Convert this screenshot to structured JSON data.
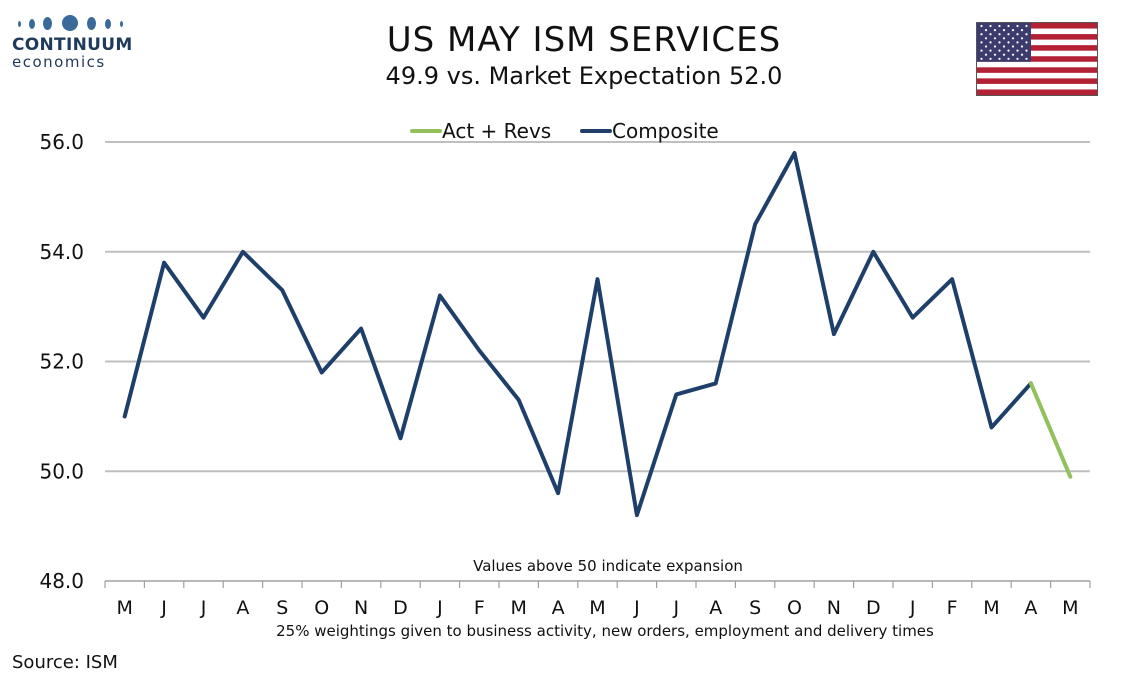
{
  "brand": {
    "name_line1": "CONTINUUM",
    "name_line2": "economics",
    "color": "#1f3a5a"
  },
  "header": {
    "title": "US MAY ISM SERVICES",
    "subtitle": "49.9 vs. Market Expectation 52.0"
  },
  "flag_icon": "us-flag-icon",
  "source": "Source: ISM",
  "chart_data": {
    "type": "line",
    "title": "US MAY ISM SERVICES",
    "subtitle": "49.9 vs. Market Expectation 52.0",
    "categories": [
      "M",
      "J",
      "J",
      "A",
      "S",
      "O",
      "N",
      "D",
      "J",
      "F",
      "M",
      "A",
      "M",
      "J",
      "J",
      "A",
      "S",
      "O",
      "N",
      "D",
      "J",
      "F",
      "M",
      "A",
      "M"
    ],
    "series": [
      {
        "name": "Act + Revs",
        "color": "#92c05a",
        "values": [
          null,
          null,
          null,
          null,
          null,
          null,
          null,
          null,
          null,
          null,
          null,
          null,
          null,
          null,
          null,
          null,
          null,
          null,
          null,
          null,
          null,
          null,
          null,
          51.6,
          49.9
        ]
      },
      {
        "name": "Composite",
        "color": "#1f3f6b",
        "values": [
          51.0,
          53.8,
          52.8,
          54.0,
          53.3,
          51.8,
          52.6,
          50.6,
          53.2,
          52.2,
          51.3,
          49.6,
          53.5,
          49.2,
          51.4,
          51.6,
          54.5,
          55.8,
          52.5,
          54.0,
          52.8,
          53.5,
          50.8,
          51.6,
          null
        ]
      }
    ],
    "ylim": [
      48.0,
      56.0
    ],
    "yticks": [
      "48.0",
      "50.0",
      "52.0",
      "54.0",
      "56.0"
    ],
    "grid": true,
    "legend_position": "top-center",
    "annotation_inside": "Values above 50 indicate expansion",
    "annotation_below": "25% weightings given to business activity, new orders, employment and delivery times"
  }
}
